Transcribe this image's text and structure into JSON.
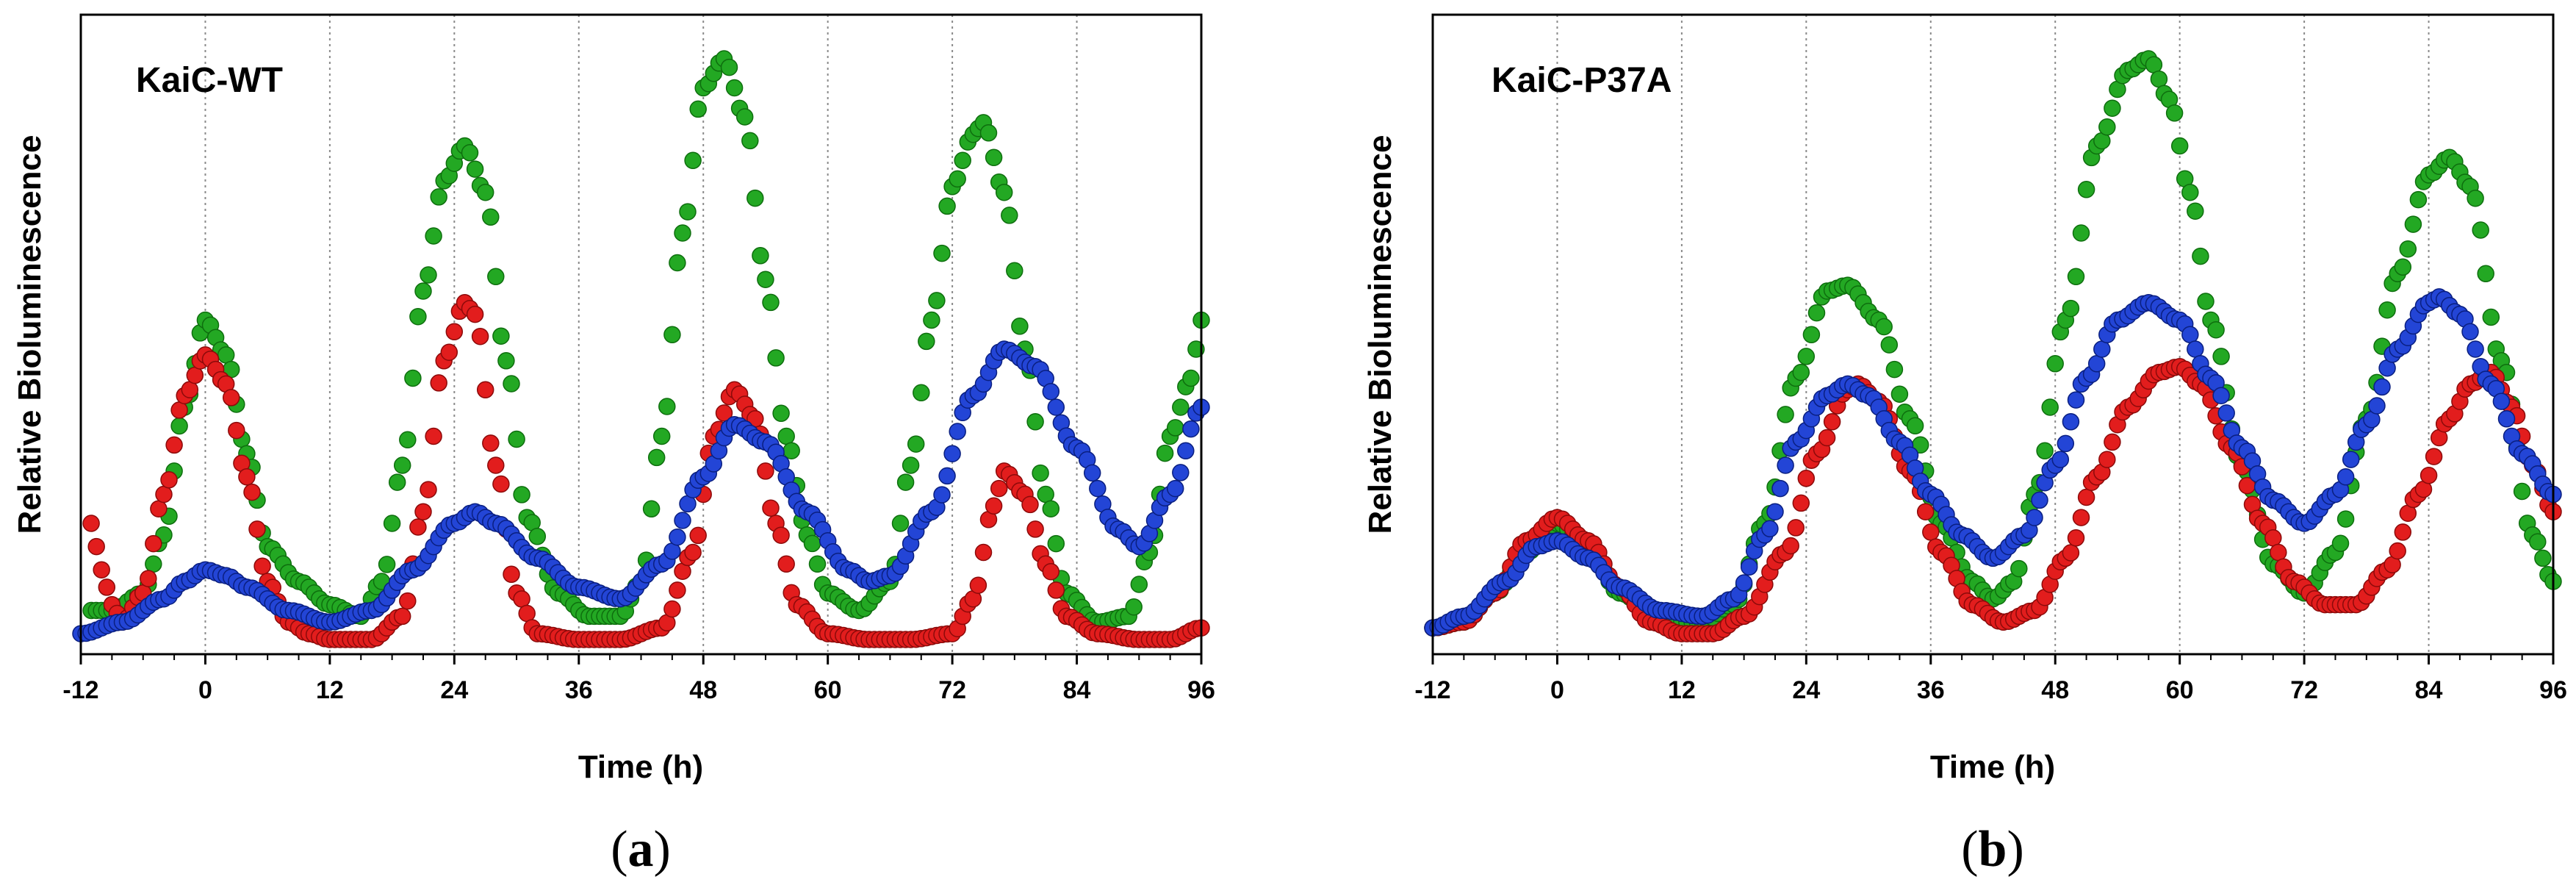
{
  "chart_data": [
    {
      "type": "scatter",
      "title": "KaiC-WT",
      "caption_letter": "a",
      "xlabel": "Time (h)",
      "ylabel": "Relative Bioluminescence",
      "xlim": [
        -12,
        96
      ],
      "ylim": [
        0,
        1
      ],
      "xticks": [
        "-12",
        "0",
        "12",
        "24",
        "36",
        "48",
        "60",
        "72",
        "84",
        "96"
      ],
      "xtick_values": [
        -12,
        0,
        12,
        24,
        36,
        48,
        60,
        72,
        84,
        96
      ],
      "grid": "vertical dotted lines at 12 h intervals",
      "y_tick_labels": false,
      "series": [
        {
          "color": "#23a823",
          "stroke": "#0e6e0e",
          "x": [
            -11,
            -9,
            -6,
            -4,
            -2,
            0,
            2,
            4,
            6,
            9,
            12,
            15,
            17,
            19,
            21,
            23,
            25,
            27,
            29,
            31,
            34,
            37,
            40,
            42,
            44,
            46,
            48,
            50,
            52,
            54,
            56,
            58,
            60,
            63,
            66,
            68,
            70,
            72,
            74,
            75,
            77,
            79,
            81,
            83,
            86,
            89,
            91,
            93,
            95,
            96
          ],
          "values": [
            0.05,
            0.05,
            0.08,
            0.18,
            0.4,
            0.55,
            0.49,
            0.32,
            0.16,
            0.1,
            0.06,
            0.04,
            0.1,
            0.3,
            0.6,
            0.79,
            0.85,
            0.77,
            0.48,
            0.21,
            0.08,
            0.04,
            0.04,
            0.1,
            0.35,
            0.7,
            0.95,
            1.0,
            0.9,
            0.62,
            0.35,
            0.18,
            0.08,
            0.05,
            0.1,
            0.3,
            0.55,
            0.78,
            0.87,
            0.89,
            0.77,
            0.5,
            0.25,
            0.08,
            0.03,
            0.04,
            0.15,
            0.35,
            0.45,
            0.55
          ]
        },
        {
          "color": "#e21d1d",
          "stroke": "#8c0a0a",
          "x": [
            -11,
            -10,
            -9,
            -8,
            -6,
            -4,
            -2,
            0,
            2,
            4,
            6,
            8,
            10,
            12,
            16,
            19,
            21,
            23,
            25,
            26,
            28,
            30,
            32,
            36,
            40,
            44,
            47,
            49,
            51,
            53,
            55,
            57,
            60,
            64,
            68,
            72,
            74,
            76,
            77,
            79,
            81,
            83,
            86,
            90,
            93,
            96
          ],
          "values": [
            0.2,
            0.12,
            0.06,
            0.03,
            0.08,
            0.25,
            0.42,
            0.49,
            0.44,
            0.28,
            0.1,
            0.03,
            0.01,
            0.0,
            0.0,
            0.04,
            0.22,
            0.48,
            0.58,
            0.56,
            0.3,
            0.08,
            0.01,
            0.0,
            0.0,
            0.02,
            0.15,
            0.35,
            0.43,
            0.38,
            0.2,
            0.06,
            0.01,
            0.0,
            0.0,
            0.01,
            0.07,
            0.23,
            0.29,
            0.25,
            0.13,
            0.04,
            0.01,
            0.0,
            0.0,
            0.02
          ]
        },
        {
          "color": "#2345d6",
          "stroke": "#0a1f80",
          "x": [
            -12,
            -8,
            -4,
            -2,
            0,
            2,
            4,
            8,
            12,
            16,
            20,
            24,
            26,
            28,
            32,
            36,
            40,
            44,
            48,
            51,
            54,
            58,
            62,
            64,
            66,
            70,
            74,
            77,
            80,
            84,
            88,
            90,
            93,
            96
          ],
          "values": [
            0.01,
            0.03,
            0.07,
            0.1,
            0.12,
            0.11,
            0.09,
            0.05,
            0.03,
            0.05,
            0.12,
            0.2,
            0.22,
            0.2,
            0.14,
            0.09,
            0.07,
            0.13,
            0.28,
            0.37,
            0.34,
            0.22,
            0.12,
            0.1,
            0.11,
            0.22,
            0.42,
            0.5,
            0.47,
            0.33,
            0.19,
            0.16,
            0.25,
            0.4
          ]
        }
      ]
    },
    {
      "type": "scatter",
      "title": "KaiC-P37A",
      "caption_letter": "b",
      "xlabel": "Time (h)",
      "ylabel": "Relative Bioluminescence",
      "xlim": [
        -12,
        96
      ],
      "ylim": [
        0,
        1
      ],
      "xticks": [
        "-12",
        "0",
        "12",
        "24",
        "36",
        "48",
        "60",
        "72",
        "84",
        "96"
      ],
      "xtick_values": [
        -12,
        0,
        12,
        24,
        36,
        48,
        60,
        72,
        84,
        96
      ],
      "grid": "vertical dotted lines at 12 h intervals",
      "y_tick_labels": false,
      "series": [
        {
          "color": "#23a823",
          "stroke": "#0e6e0e",
          "x": [
            -12,
            -9,
            -6,
            -3,
            0,
            3,
            6,
            10,
            14,
            17,
            20,
            23,
            26,
            28,
            31,
            34,
            37,
            40,
            42,
            44,
            46,
            49,
            52,
            55,
            57,
            59,
            61,
            63,
            66,
            69,
            72,
            75,
            78,
            81,
            84,
            86,
            88,
            91,
            94,
            96
          ],
          "values": [
            0.02,
            0.03,
            0.08,
            0.15,
            0.2,
            0.16,
            0.08,
            0.03,
            0.03,
            0.06,
            0.2,
            0.45,
            0.6,
            0.61,
            0.55,
            0.38,
            0.2,
            0.1,
            0.07,
            0.1,
            0.25,
            0.55,
            0.85,
            0.98,
            1.0,
            0.93,
            0.77,
            0.55,
            0.3,
            0.13,
            0.08,
            0.15,
            0.38,
            0.63,
            0.8,
            0.83,
            0.78,
            0.48,
            0.18,
            0.1
          ]
        },
        {
          "color": "#e21d1d",
          "stroke": "#8c0a0a",
          "x": [
            -12,
            -9,
            -6,
            -3,
            0,
            3,
            6,
            9,
            12,
            15,
            18,
            22,
            25,
            28,
            29,
            31,
            34,
            37,
            40,
            43,
            46,
            49,
            52,
            55,
            58,
            60,
            62,
            65,
            68,
            71,
            74,
            77,
            80,
            83,
            86,
            88,
            90,
            92,
            94,
            96
          ],
          "values": [
            0.02,
            0.03,
            0.08,
            0.17,
            0.21,
            0.17,
            0.09,
            0.03,
            0.01,
            0.01,
            0.04,
            0.15,
            0.32,
            0.43,
            0.44,
            0.41,
            0.29,
            0.15,
            0.06,
            0.03,
            0.05,
            0.14,
            0.28,
            0.4,
            0.46,
            0.47,
            0.44,
            0.33,
            0.2,
            0.1,
            0.06,
            0.06,
            0.12,
            0.25,
            0.38,
            0.44,
            0.46,
            0.4,
            0.3,
            0.22
          ]
        },
        {
          "color": "#2345d6",
          "stroke": "#0a1f80",
          "x": [
            -12,
            -9,
            -5,
            -2,
            0,
            3,
            6,
            10,
            14,
            17,
            20,
            23,
            26,
            28,
            30,
            33,
            36,
            39,
            42,
            45,
            48,
            51,
            54,
            57,
            60,
            63,
            66,
            69,
            72,
            75,
            78,
            81,
            84,
            85,
            87,
            90,
            93,
            96
          ],
          "values": [
            0.02,
            0.04,
            0.1,
            0.16,
            0.17,
            0.14,
            0.09,
            0.05,
            0.04,
            0.07,
            0.18,
            0.34,
            0.42,
            0.44,
            0.42,
            0.34,
            0.25,
            0.18,
            0.14,
            0.18,
            0.3,
            0.45,
            0.55,
            0.58,
            0.55,
            0.45,
            0.33,
            0.24,
            0.2,
            0.25,
            0.37,
            0.5,
            0.58,
            0.59,
            0.56,
            0.44,
            0.32,
            0.25
          ]
        }
      ]
    }
  ]
}
